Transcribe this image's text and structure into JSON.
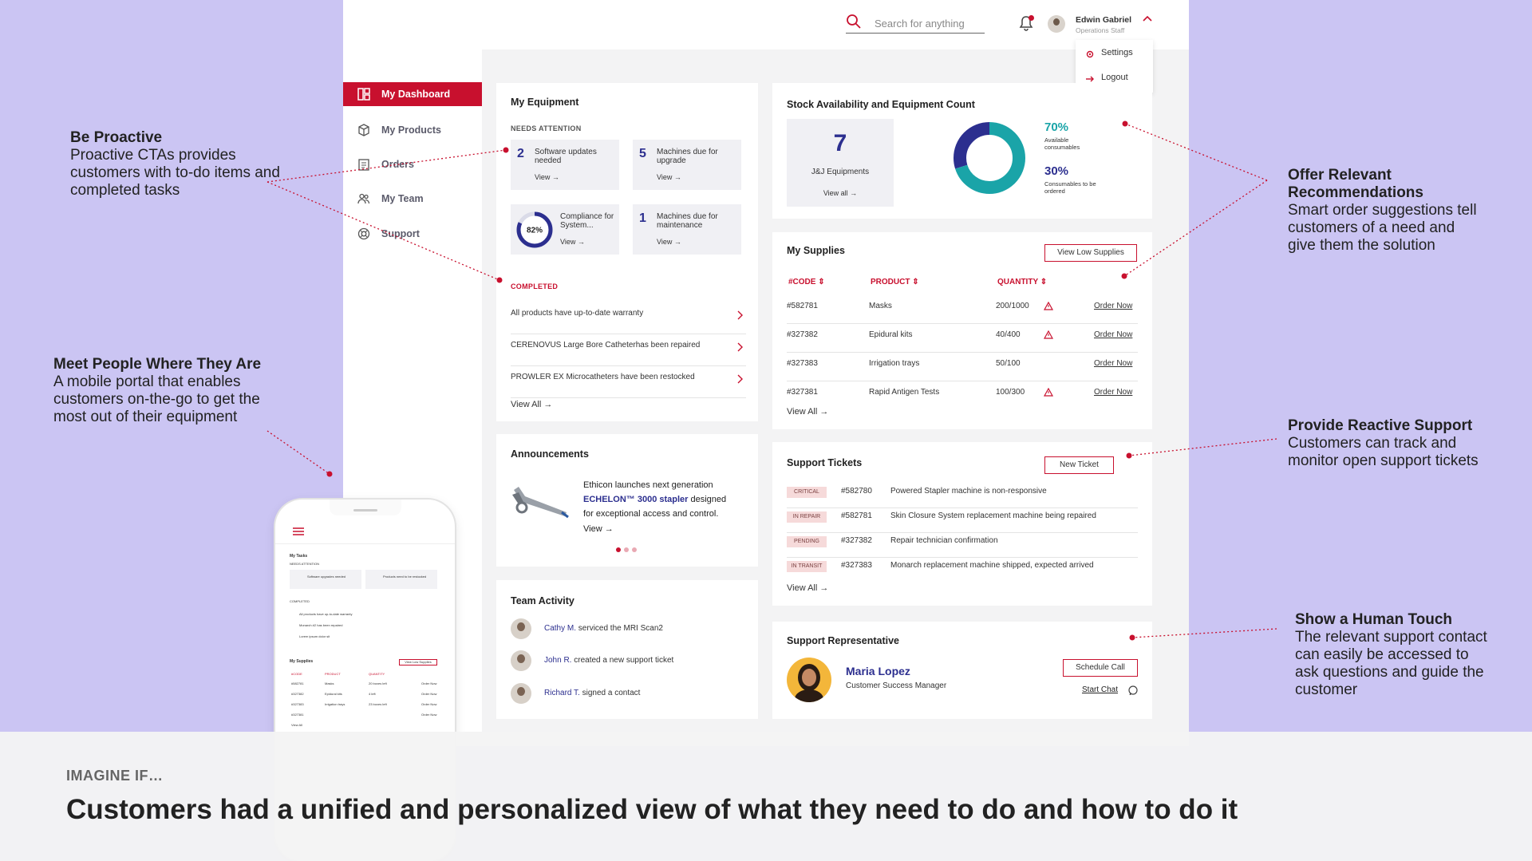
{
  "app": {
    "search_placeholder": "Search for anything",
    "user_name": "Edwin Gabriel",
    "user_role": "Operations Staff",
    "menu": [
      "Settings",
      "Logout"
    ],
    "nav": [
      "My Dashboard",
      "My Products",
      "Orders",
      "My Team",
      "Support"
    ]
  },
  "equipment": {
    "title": "My Equipment",
    "needs_label": "NEEDS ATTENTION",
    "tiles": [
      {
        "num": "2",
        "text": "Software updates needed",
        "view": "View"
      },
      {
        "num": "5",
        "text": "Machines due for upgrade",
        "view": "View"
      },
      {
        "num": "82%",
        "text": "Compliance for System...",
        "view": "View"
      },
      {
        "num": "1",
        "text": "Machines due for maintenance",
        "view": "View"
      }
    ],
    "completed_label": "COMPLETED",
    "completed": [
      "All products have up-to-date warranty",
      "CERENOVUS Large Bore Catheterhas been repaired",
      "PROWLER EX Microcatheters have been restocked"
    ],
    "view_all": "View All"
  },
  "stock": {
    "title": "Stock Availability and Equipment Count",
    "count": "7",
    "count_label": "J&J Equipments",
    "view_all": "View all",
    "available_pct": "70%",
    "available_label": "Available consumables",
    "order_pct": "30%",
    "order_label": "Consumables to be ordered",
    "available_value": 0.7,
    "color_available": "#1aa4a8",
    "color_order": "#2c2f8f"
  },
  "supplies": {
    "title": "My Supplies",
    "button": "View Low Supplies",
    "headers": [
      "#CODE",
      "PRODUCT",
      "QUANTITY"
    ],
    "rows": [
      {
        "code": "#582781",
        "product": "Masks",
        "qty": "200/1000",
        "action": "Order Now"
      },
      {
        "code": "#327382",
        "product": "Epidural kits",
        "qty": "40/400",
        "action": "Order Now"
      },
      {
        "code": "#327383",
        "product": "Irrigation trays",
        "qty": "50/100",
        "action": "Order Now"
      },
      {
        "code": "#327381",
        "product": "Rapid Antigen Tests",
        "qty": "100/300",
        "action": "Order Now"
      }
    ],
    "view_all": "View All"
  },
  "announcements": {
    "title": "Announcements",
    "line1": "Ethicon launches next generation",
    "product": "ECHELON™ 3000 stapler",
    "line2": "designed",
    "line3": "for exceptional access and control.",
    "view": "View"
  },
  "tickets": {
    "title": "Support Tickets",
    "button": "New Ticket",
    "rows": [
      {
        "status": "CRITICAL",
        "id": "#582780",
        "desc": "Powered Stapler machine is non-responsive"
      },
      {
        "status": "IN REPAIR",
        "id": "#582781",
        "desc": "Skin Closure System replacement machine being repaired"
      },
      {
        "status": "PENDING",
        "id": "#327382",
        "desc": "Repair technician confirmation"
      },
      {
        "status": "IN TRANSIT",
        "id": "#327383",
        "desc": "Monarch replacement machine shipped, expected arrived"
      }
    ],
    "view_all": "View All"
  },
  "team": {
    "title": "Team Activity",
    "rows": [
      {
        "name": "Cathy M.",
        "action": "serviced the MRI Scan2"
      },
      {
        "name": "John R.",
        "action": "created a new support ticket"
      },
      {
        "name": "Richard T.",
        "action": "signed a contact"
      }
    ]
  },
  "rep": {
    "title": "Support Representative",
    "name": "Maria Lopez",
    "role": "Customer Success Manager",
    "call": "Schedule Call",
    "chat": "Start Chat"
  },
  "notes": {
    "proactive": {
      "title": "Be Proactive",
      "body": "Proactive CTAs provides customers with to-do items and completed tasks"
    },
    "mobile": {
      "title": "Meet People Where They Are",
      "body": "A mobile portal that enables customers on-the-go to get the most out of their equipment"
    },
    "recommend": {
      "title": "Offer Relevant Recommendations",
      "body": "Smart order suggestions tell customers of a need and give them the solution"
    },
    "reactive": {
      "title": "Provide Reactive Support",
      "body": "Customers can track and monitor open support tickets"
    },
    "human": {
      "title": "Show a Human Touch",
      "body": "The relevant support contact can easily be accessed to ask questions and guide the customer"
    }
  },
  "footer": {
    "kicker": "IMAGINE IF…",
    "headline": "Customers had a unified and personalized view of what they need to do and how to do it"
  },
  "mobile": {
    "tasks": "My Tasks",
    "needs": "NEEDS ATTENTION",
    "tile1": "Software upgrades needed",
    "tile2": "Products need to be restocked",
    "completed": "COMPLETED",
    "items": [
      "All products have up-to-date warranty",
      "Monarch #2 has been repaired",
      "Lorem ipsum dolor sit"
    ],
    "supplies": "My Supplies",
    "button": "View Low Supplies",
    "headers": [
      "#CODE",
      "PRODUCT",
      "QUANTITY"
    ],
    "rows": [
      {
        "code": "#582781",
        "product": "Masks",
        "qty": "20 boxes left",
        "action": "Order Now"
      },
      {
        "code": "#327382",
        "product": "Epidural kits",
        "qty": "4 left",
        "action": "Order Now"
      },
      {
        "code": "#327383",
        "product": "Irrigation trays",
        "qty": "23 boxes left",
        "action": "Order Now"
      },
      {
        "code": "#327381",
        "product": "",
        "qty": "",
        "action": "Order Now"
      }
    ],
    "view_all": "View All"
  }
}
